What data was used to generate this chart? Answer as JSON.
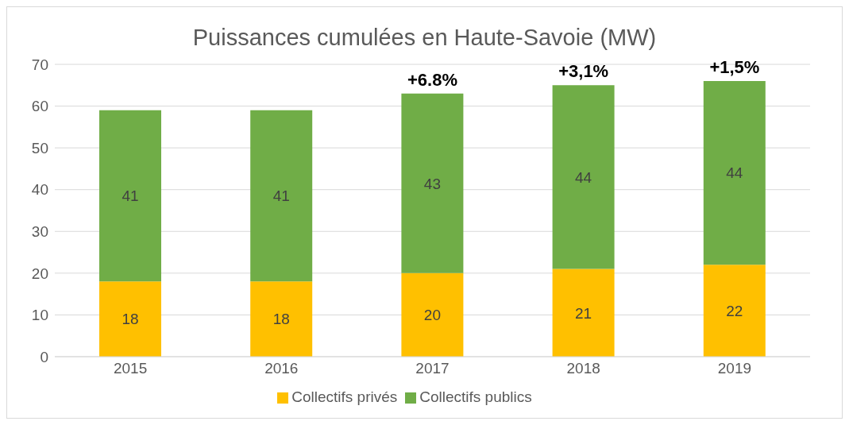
{
  "chart_data": {
    "type": "bar",
    "title": "Puissances cumulées en Haute-Savoie (MW)",
    "categories": [
      "2015",
      "2016",
      "2017",
      "2018",
      "2019"
    ],
    "stacked": true,
    "series": [
      {
        "name": "Collectifs privés",
        "color": "#ffc000",
        "values": [
          18,
          18,
          20,
          21,
          22
        ]
      },
      {
        "name": "Collectifs publics",
        "color": "#70ad47",
        "values": [
          41,
          41,
          43,
          44,
          44
        ]
      }
    ],
    "ylim": [
      0,
      70
    ],
    "yticks": [
      0,
      10,
      20,
      30,
      40,
      50,
      60,
      70
    ],
    "grid": "y",
    "legend": "bottom",
    "data_labels": true,
    "annotations": [
      {
        "text": "+6.8%",
        "x": "2017",
        "y": 63
      },
      {
        "text": "+3,1%",
        "x": "2018",
        "y": 65
      },
      {
        "text": "+1,5%",
        "x": "2019",
        "y": 66
      }
    ]
  }
}
